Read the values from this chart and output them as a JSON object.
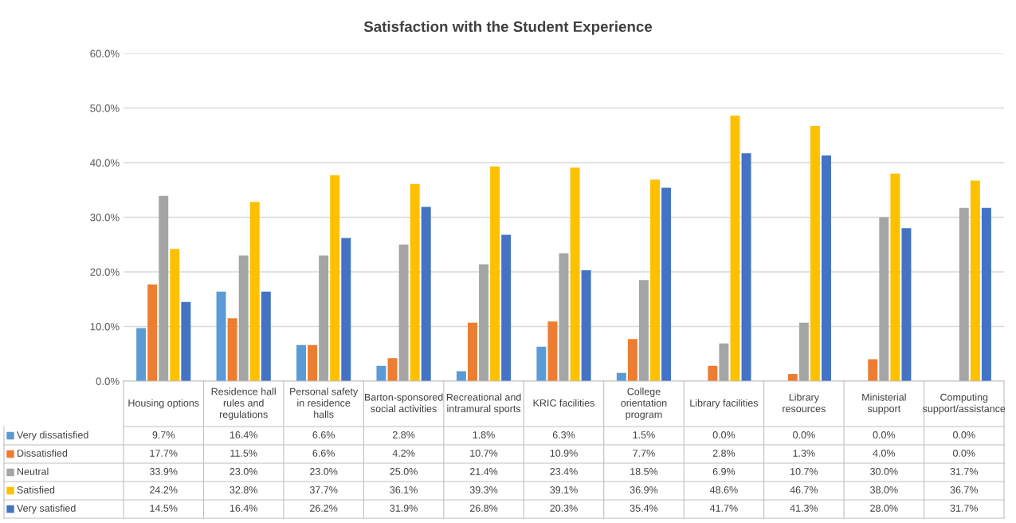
{
  "chart_data": {
    "type": "bar",
    "title": "Satisfaction with the Student Experience",
    "categories": [
      "Housing options",
      "Residence hall rules and regulations",
      "Personal safety in residence halls",
      "Barton-sponsored social activities",
      "Recreational and intramural sports",
      "KRIC facilities",
      "College orientation program",
      "Library facilities",
      "Library resources",
      "Ministerial support",
      "Computing support/assistance"
    ],
    "series": [
      {
        "name": "Very dissatisfied",
        "color": "#5b9bd5",
        "values": [
          9.7,
          16.4,
          6.6,
          2.8,
          1.8,
          6.3,
          1.5,
          0.0,
          0.0,
          0.0,
          0.0
        ],
        "value_labels": [
          "9.7%",
          "16.4%",
          "6.6%",
          "2.8%",
          "1.8%",
          "6.3%",
          "1.5%",
          "0.0%",
          "0.0%",
          "0.0%",
          "0.0%"
        ]
      },
      {
        "name": "Dissatisfied",
        "color": "#ed7d31",
        "values": [
          17.7,
          11.5,
          6.6,
          4.2,
          10.7,
          10.9,
          7.7,
          2.8,
          1.3,
          4.0,
          0.0
        ],
        "value_labels": [
          "17.7%",
          "11.5%",
          "6.6%",
          "4.2%",
          "10.7%",
          "10.9%",
          "7.7%",
          "2.8%",
          "1.3%",
          "4.0%",
          "0.0%"
        ]
      },
      {
        "name": "Neutral",
        "color": "#a5a5a5",
        "values": [
          33.9,
          23.0,
          23.0,
          25.0,
          21.4,
          23.4,
          18.5,
          6.9,
          10.7,
          30.0,
          31.7
        ],
        "value_labels": [
          "33.9%",
          "23.0%",
          "23.0%",
          "25.0%",
          "21.4%",
          "23.4%",
          "18.5%",
          "6.9%",
          "10.7%",
          "30.0%",
          "31.7%"
        ]
      },
      {
        "name": "Satisfied",
        "color": "#ffc000",
        "values": [
          24.2,
          32.8,
          37.7,
          36.1,
          39.3,
          39.1,
          36.9,
          48.6,
          46.7,
          38.0,
          36.7
        ],
        "value_labels": [
          "24.2%",
          "32.8%",
          "37.7%",
          "36.1%",
          "39.3%",
          "39.1%",
          "36.9%",
          "48.6%",
          "46.7%",
          "38.0%",
          "36.7%"
        ]
      },
      {
        "name": "Very satisfied",
        "color": "#4472c4",
        "values": [
          14.5,
          16.4,
          26.2,
          31.9,
          26.8,
          20.3,
          35.4,
          41.7,
          41.3,
          28.0,
          31.7
        ],
        "value_labels": [
          "14.5%",
          "16.4%",
          "26.2%",
          "31.9%",
          "26.8%",
          "20.3%",
          "35.4%",
          "41.7%",
          "41.3%",
          "28.0%",
          "31.7%"
        ]
      }
    ],
    "ylim": [
      0,
      60
    ],
    "yticks": [
      {
        "value": 0,
        "label": "0.0%"
      },
      {
        "value": 10,
        "label": "10.0%"
      },
      {
        "value": 20,
        "label": "20.0%"
      },
      {
        "value": 30,
        "label": "30.0%"
      },
      {
        "value": 40,
        "label": "40.0%"
      },
      {
        "value": 50,
        "label": "50.0%"
      },
      {
        "value": 60,
        "label": "60.0%"
      }
    ],
    "grid": "y",
    "legend": "bottom"
  }
}
